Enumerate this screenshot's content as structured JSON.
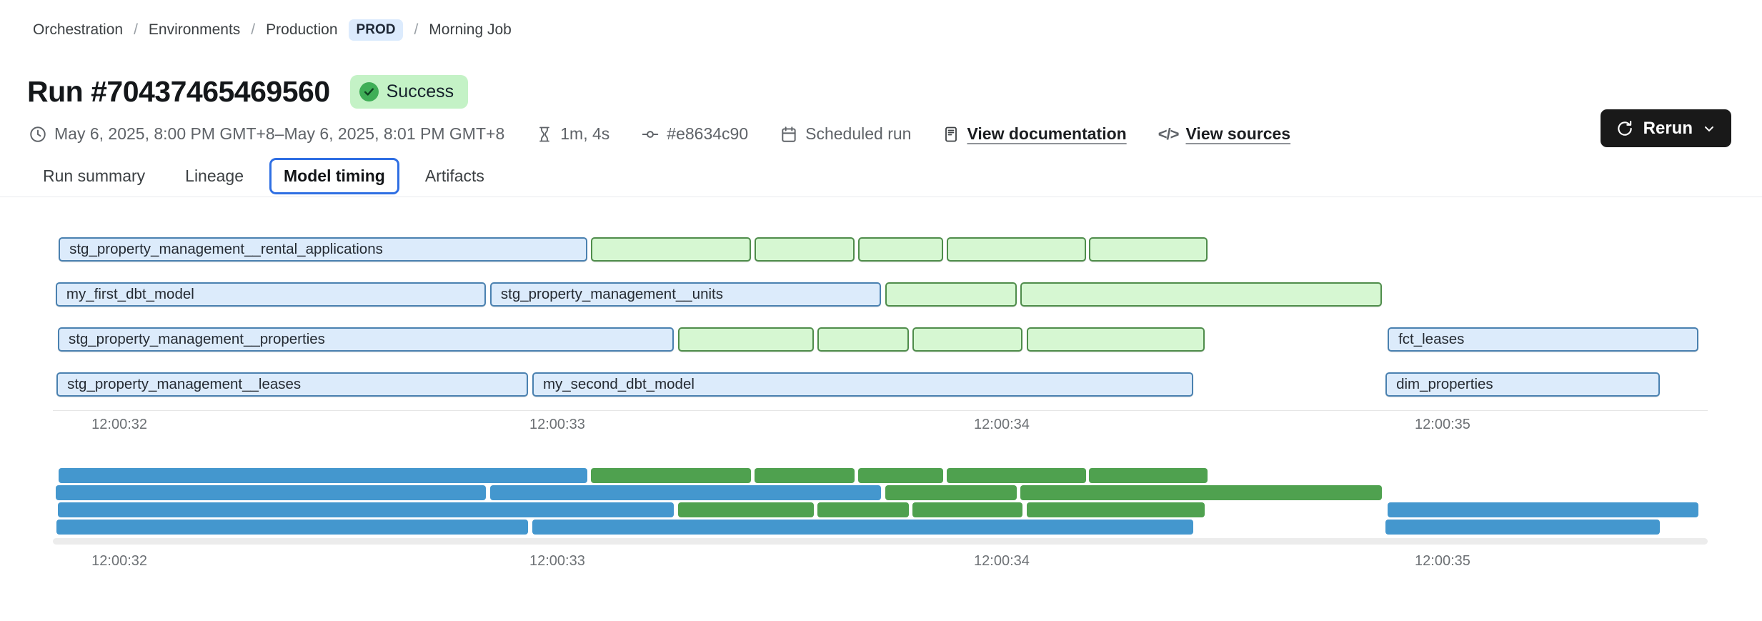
{
  "breadcrumb": {
    "separator": "/",
    "items": [
      "Orchestration",
      "Environments",
      "Production",
      "Morning Job"
    ],
    "production_badge": "PROD"
  },
  "header": {
    "title": "Run #70437465469560",
    "status": "Success",
    "rerun_label": "Rerun"
  },
  "meta": {
    "time_range": "May 6, 2025, 8:00 PM GMT+8–May 6, 2025, 8:01 PM GMT+8",
    "duration": "1m, 4s",
    "commit": "#e8634c90",
    "trigger": "Scheduled run",
    "docs_link": "View documentation",
    "sources_link": "View sources"
  },
  "tabs": {
    "items": [
      "Run summary",
      "Lineage",
      "Model timing",
      "Artifacts"
    ],
    "active": "Model timing"
  },
  "colors": {
    "accent_blue": "#2f6fe3",
    "prod_badge_bg": "#dcebfd",
    "badge_green_bg": "#c4f2c6",
    "badge_green_dot": "#3fae57",
    "bar_blue_fill": "#dcebfb",
    "bar_blue_border": "#4a81b0",
    "bar_green_fill": "#d6f7d2",
    "bar_green_border": "#4f8d4b",
    "mini_blue": "#4497ce",
    "mini_green": "#4fa14f"
  },
  "chart_data": {
    "type": "gantt",
    "title": "Model timing",
    "x_ticks": [
      {
        "label": "12:00:32",
        "pct": 4.02
      },
      {
        "label": "12:00:33",
        "pct": 30.48
      },
      {
        "label": "12:00:34",
        "pct": 57.34
      },
      {
        "label": "12:00:35",
        "pct": 83.98
      }
    ],
    "rows": [
      {
        "bars": [
          {
            "label": "stg_property_management__rental_applications",
            "color": "blue",
            "start_pct": 0.35,
            "width_pct": 31.95
          },
          {
            "color": "green",
            "start_pct": 32.51,
            "width_pct": 9.67
          },
          {
            "color": "green",
            "start_pct": 42.4,
            "width_pct": 6.04
          },
          {
            "color": "green",
            "start_pct": 48.66,
            "width_pct": 5.14
          },
          {
            "color": "green",
            "start_pct": 54.02,
            "width_pct": 8.42
          },
          {
            "color": "green",
            "start_pct": 62.61,
            "width_pct": 7.17
          }
        ]
      },
      {
        "bars": [
          {
            "label": "my_first_dbt_model",
            "color": "blue",
            "start_pct": 0.17,
            "width_pct": 25.99
          },
          {
            "label": "stg_property_management__units",
            "color": "blue",
            "start_pct": 26.42,
            "width_pct": 23.62
          },
          {
            "color": "green",
            "start_pct": 50.3,
            "width_pct": 7.94
          },
          {
            "color": "green",
            "start_pct": 58.46,
            "width_pct": 21.85
          }
        ]
      },
      {
        "bars": [
          {
            "label": "stg_property_management__properties",
            "color": "blue",
            "start_pct": 0.3,
            "width_pct": 37.22
          },
          {
            "color": "green",
            "start_pct": 37.78,
            "width_pct": 8.2
          },
          {
            "color": "green",
            "start_pct": 46.2,
            "width_pct": 5.53
          },
          {
            "color": "green",
            "start_pct": 51.94,
            "width_pct": 6.65
          },
          {
            "color": "green",
            "start_pct": 58.85,
            "width_pct": 10.75
          },
          {
            "label": "fct_leases",
            "color": "blue",
            "start_pct": 80.66,
            "width_pct": 18.78
          }
        ]
      },
      {
        "bars": [
          {
            "label": "stg_property_management__leases",
            "color": "blue",
            "start_pct": 0.22,
            "width_pct": 28.5
          },
          {
            "label": "my_second_dbt_model",
            "color": "blue",
            "start_pct": 28.97,
            "width_pct": 39.94
          },
          {
            "label": "dim_properties",
            "color": "blue",
            "start_pct": 80.53,
            "width_pct": 16.58
          }
        ]
      }
    ]
  }
}
